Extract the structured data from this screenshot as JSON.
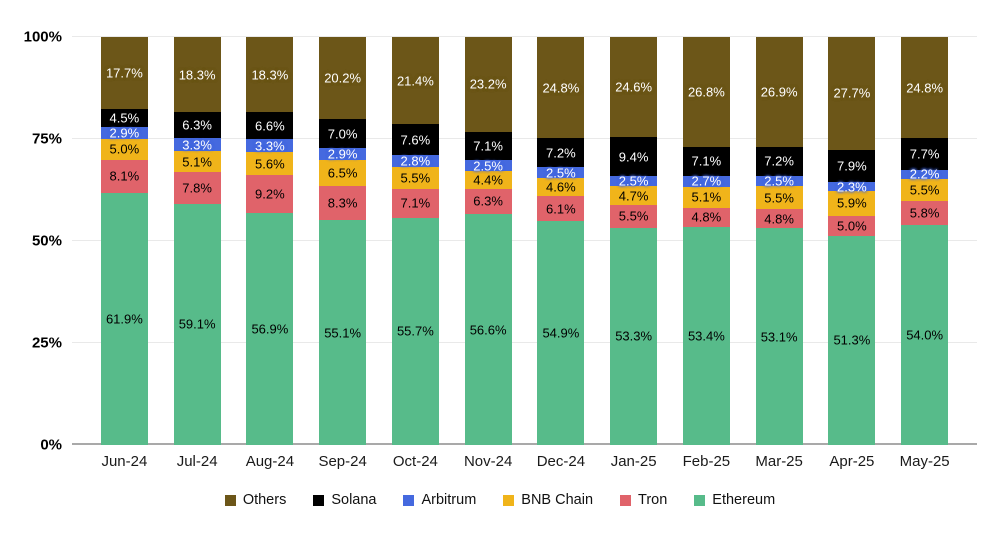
{
  "chart_data": {
    "type": "bar",
    "stacked": true,
    "title": "",
    "xlabel": "",
    "ylabel": "",
    "ylim": [
      0,
      100
    ],
    "grid": true,
    "legend_position": "bottom",
    "y_ticks": [
      {
        "value": 0,
        "label": "0%"
      },
      {
        "value": 25,
        "label": "25%"
      },
      {
        "value": 50,
        "label": "50%"
      },
      {
        "value": 75,
        "label": "75%"
      },
      {
        "value": 100,
        "label": "100%"
      }
    ],
    "categories": [
      "Jun-24",
      "Jul-24",
      "Aug-24",
      "Sep-24",
      "Oct-24",
      "Nov-24",
      "Dec-24",
      "Jan-25",
      "Feb-25",
      "Mar-25",
      "Apr-25",
      "May-25"
    ],
    "series_bottom_to_top": [
      {
        "name": "Ethereum",
        "color": "#57bb8a",
        "text_color": "#000000",
        "halo": false,
        "values": [
          61.9,
          59.1,
          56.9,
          55.1,
          55.7,
          56.6,
          54.9,
          53.3,
          53.4,
          53.1,
          51.3,
          54.0
        ]
      },
      {
        "name": "Tron",
        "color": "#e0636a",
        "text_color": "#000000",
        "halo": false,
        "values": [
          8.1,
          7.8,
          9.2,
          8.3,
          7.1,
          6.3,
          6.1,
          5.5,
          4.8,
          4.8,
          5.0,
          5.8
        ]
      },
      {
        "name": "BNB Chain",
        "color": "#f0b41a",
        "text_color": "#000000",
        "halo": false,
        "values": [
          5.0,
          5.1,
          5.6,
          6.5,
          5.5,
          4.4,
          4.6,
          4.7,
          5.1,
          5.5,
          5.9,
          5.5
        ]
      },
      {
        "name": "Arbitrum",
        "color": "#4569df",
        "text_color": "#ffffff",
        "halo": true,
        "values": [
          2.9,
          3.3,
          3.3,
          2.9,
          2.8,
          2.5,
          2.5,
          2.5,
          2.7,
          2.5,
          2.3,
          2.2
        ]
      },
      {
        "name": "Solana",
        "color": "#000000",
        "text_color": "#ffffff",
        "halo": true,
        "values": [
          4.5,
          6.3,
          6.6,
          7.0,
          7.6,
          7.1,
          7.2,
          9.4,
          7.1,
          7.2,
          7.9,
          7.7
        ]
      },
      {
        "name": "Others",
        "color": "#6c5618",
        "text_color": "#ffffff",
        "halo": true,
        "values": [
          17.7,
          18.3,
          18.3,
          20.2,
          21.4,
          23.2,
          24.8,
          24.6,
          26.8,
          26.9,
          27.7,
          24.8
        ]
      }
    ],
    "legend": [
      {
        "label": "Others",
        "color": "#6c5618"
      },
      {
        "label": "Solana",
        "color": "#000000"
      },
      {
        "label": "Arbitrum",
        "color": "#4569df"
      },
      {
        "label": "BNB Chain",
        "color": "#f0b41a"
      },
      {
        "label": "Tron",
        "color": "#e0636a"
      },
      {
        "label": "Ethereum",
        "color": "#57bb8a"
      }
    ],
    "label_format": "percent_one_decimal"
  }
}
